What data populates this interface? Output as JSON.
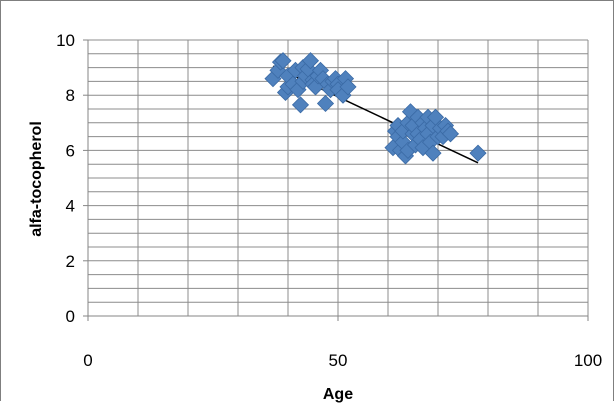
{
  "chart_data": {
    "type": "scatter",
    "title": "",
    "xlabel": "Age",
    "ylabel": "alfa-tocopherol",
    "xlim": [
      0,
      100
    ],
    "ylim": [
      0,
      10
    ],
    "x_ticks": [
      "0",
      "50",
      "100"
    ],
    "y_ticks": [
      "0",
      "2",
      "4",
      "6",
      "8",
      "10"
    ],
    "grid": true,
    "legend": "none",
    "marker": "diamond",
    "marker_color": "#4f81bd",
    "trendline": {
      "type": "linear",
      "color": "#000000",
      "x": [
        37,
        78
      ],
      "y": [
        9.05,
        5.55
      ]
    },
    "series": [
      {
        "x": [
          37,
          38,
          38.5,
          39,
          39.5,
          40,
          40,
          41,
          41.5,
          42,
          42.5,
          43,
          43,
          43.5,
          44,
          44.5,
          45,
          45,
          45.5,
          46,
          46.5,
          47,
          47.5,
          48,
          48.5,
          49,
          49.5,
          50,
          50,
          51,
          51.5,
          52,
          61,
          61.5,
          62,
          62,
          62.5,
          63,
          63,
          63.5,
          64,
          64,
          64.5,
          65,
          65,
          65.5,
          66,
          66,
          66.5,
          67,
          67,
          67.5,
          68,
          68,
          68.5,
          69,
          69,
          69.5,
          70,
          70.5,
          71,
          71.5,
          72,
          72.5,
          78
        ],
        "y": [
          8.6,
          8.9,
          9.2,
          9.25,
          8.1,
          8.3,
          8.7,
          8.4,
          8.9,
          8.2,
          7.65,
          9.0,
          8.5,
          8.7,
          8.95,
          9.25,
          8.55,
          8.4,
          8.3,
          8.7,
          8.9,
          8.6,
          7.7,
          8.4,
          8.2,
          8.5,
          8.6,
          8.4,
          8.2,
          8.0,
          8.6,
          8.3,
          6.1,
          6.7,
          6.9,
          6.5,
          6.0,
          6.3,
          6.7,
          5.8,
          6.0,
          7.0,
          7.4,
          6.6,
          6.9,
          6.2,
          7.2,
          6.6,
          6.4,
          7.0,
          6.1,
          6.8,
          6.6,
          7.2,
          6.3,
          5.9,
          6.9,
          7.2,
          6.5,
          6.8,
          6.5,
          6.9,
          6.7,
          6.6,
          5.9
        ]
      }
    ]
  }
}
